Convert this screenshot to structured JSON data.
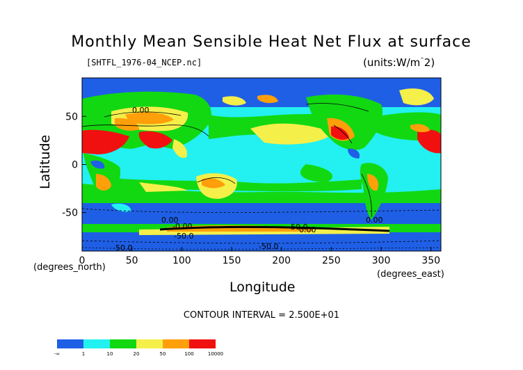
{
  "title": "Monthly Mean Sensible Heat Net Flux at surface",
  "file_label": "[SHTFL_1976-04_NCEP.nc]",
  "units_label": "(units:W/m^2)",
  "x_axis": {
    "label": "Longitude",
    "units": "(degrees_east)",
    "ticks": [
      "0",
      "50",
      "100",
      "150",
      "200",
      "250",
      "300",
      "350"
    ],
    "range": [
      0,
      360
    ]
  },
  "y_axis": {
    "label": "Latitude",
    "units": "(degrees_north)",
    "ticks": [
      "50",
      "0",
      "-50"
    ],
    "range": [
      -90,
      90
    ]
  },
  "contour_interval": "CONTOUR INTERVAL = 2.500E+01",
  "contour_labels": [
    "0.00",
    "0.00",
    "-0.00",
    "0.00",
    "-50.0",
    "0.00",
    "-50.0",
    "-50.0",
    "-50.0"
  ],
  "colorbar": {
    "colors": [
      "#1f5fe6",
      "#23f0f0",
      "#12d812",
      "#f5ef4a",
      "#ff9f0a",
      "#f01010"
    ],
    "labels": [
      "-∞",
      "1",
      "10",
      "20",
      "50",
      "100",
      "10000"
    ]
  },
  "chart_data": {
    "type": "heatmap",
    "title": "Monthly Mean Sensible Heat Net Flux at surface",
    "xlabel": "Longitude",
    "ylabel": "Latitude",
    "xlim": [
      0,
      360
    ],
    "ylim": [
      -90,
      90
    ],
    "color_levels": [
      "-∞",
      "1",
      "10",
      "20",
      "50",
      "100",
      "10000"
    ]
  }
}
